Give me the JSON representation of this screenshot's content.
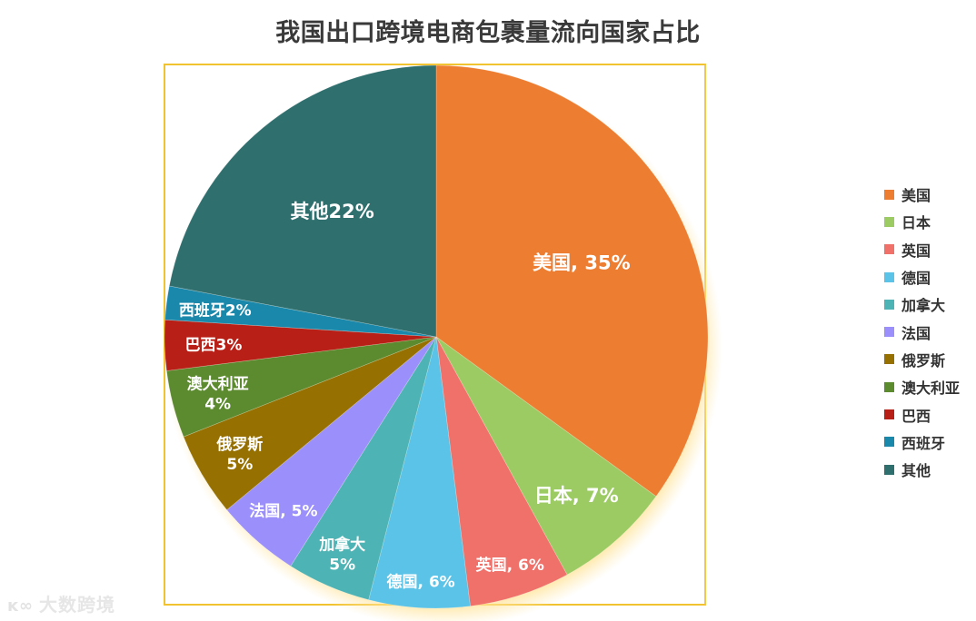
{
  "title": "我国出口跨境电商包裹量流向国家占比",
  "watermark": {
    "logo": "ĸ∞",
    "text": "大数跨境"
  },
  "legend": [
    {
      "label": "美国",
      "color": "#ed7d31"
    },
    {
      "label": "日本",
      "color": "#9ccb64"
    },
    {
      "label": "英国",
      "color": "#f0706a"
    },
    {
      "label": "德国",
      "color": "#5bc3e7"
    },
    {
      "label": "加拿大",
      "color": "#4eb3b4"
    },
    {
      "label": "法国",
      "color": "#9b8ffb"
    },
    {
      "label": "俄罗斯",
      "color": "#967000"
    },
    {
      "label": "澳大利亚",
      "color": "#5c8a2e"
    },
    {
      "label": "巴西",
      "color": "#b81f16"
    },
    {
      "label": "西班牙",
      "color": "#1a88aa"
    },
    {
      "label": "其他",
      "color": "#2f6f6e"
    }
  ],
  "slice_labels": [
    {
      "line1": "美国, 35%",
      "line2": ""
    },
    {
      "line1": "日本, 7%",
      "line2": ""
    },
    {
      "line1": "英国, 6%",
      "line2": ""
    },
    {
      "line1": "德国, 6%",
      "line2": ""
    },
    {
      "line1": "加拿大",
      "line2": "5%"
    },
    {
      "line1": "法国, 5%",
      "line2": ""
    },
    {
      "line1": "俄罗斯",
      "line2": "5%"
    },
    {
      "line1": "澳大利亚",
      "line2": "4%"
    },
    {
      "line1": "巴西3%",
      "line2": ""
    },
    {
      "line1": "西班牙2%",
      "line2": ""
    },
    {
      "line1": "其他22%",
      "line2": ""
    }
  ],
  "chart_data": {
    "type": "pie",
    "title": "我国出口跨境电商包裹量流向国家占比",
    "categories": [
      "美国",
      "日本",
      "英国",
      "德国",
      "加拿大",
      "法国",
      "俄罗斯",
      "澳大利亚",
      "巴西",
      "西班牙",
      "其他"
    ],
    "values": [
      35,
      7,
      6,
      6,
      5,
      5,
      5,
      4,
      3,
      2,
      22
    ],
    "unit": "%",
    "colors": [
      "#ed7d31",
      "#9ccb64",
      "#f0706a",
      "#5bc3e7",
      "#4eb3b4",
      "#9b8ffb",
      "#967000",
      "#5c8a2e",
      "#b81f16",
      "#1a88aa",
      "#2f6f6e"
    ],
    "start_angle": "12 o'clock, clockwise",
    "legend_position": "right"
  }
}
